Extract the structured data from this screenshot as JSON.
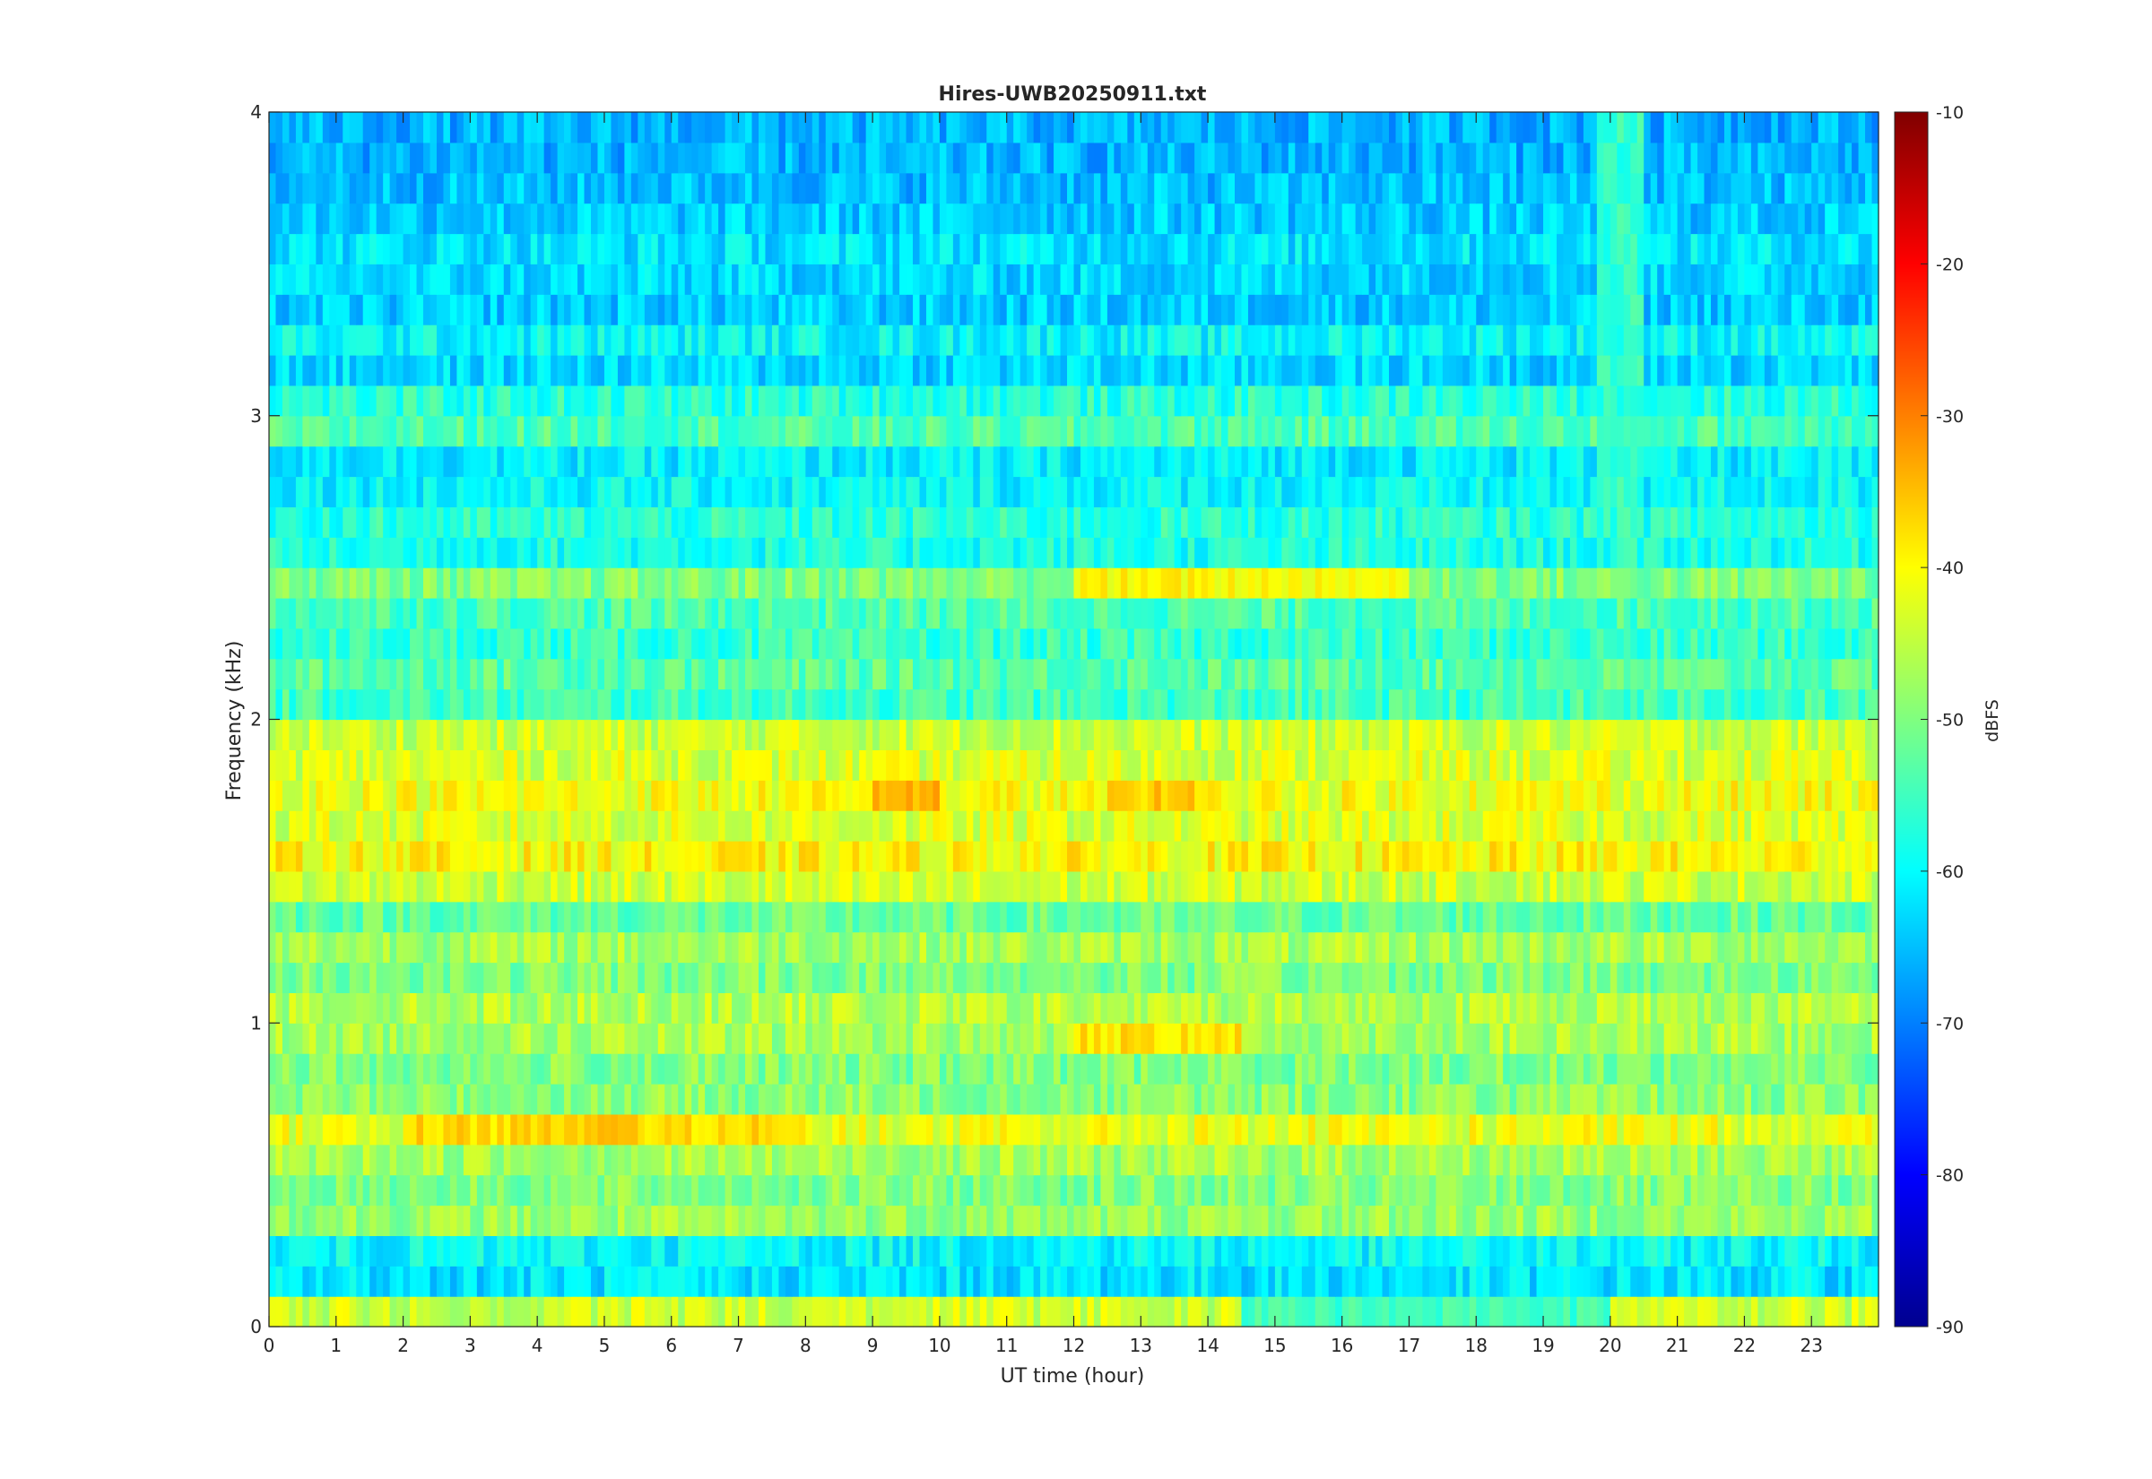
{
  "chart_data": {
    "type": "heatmap",
    "title": "Hires-UWB20250911.txt",
    "xlabel": "UT time (hour)",
    "ylabel": "Frequency (kHz)",
    "xlim": [
      0,
      24
    ],
    "ylim": [
      0,
      4
    ],
    "x_ticks": [
      "0",
      "1",
      "2",
      "3",
      "4",
      "5",
      "6",
      "7",
      "8",
      "9",
      "10",
      "11",
      "12",
      "13",
      "14",
      "15",
      "16",
      "17",
      "18",
      "19",
      "20",
      "21",
      "22",
      "23"
    ],
    "y_ticks": [
      "0",
      "1",
      "2",
      "3",
      "4"
    ],
    "colormap": "jet",
    "grid": false,
    "colorbar": {
      "label": "dBFS",
      "range": [
        -90,
        -10
      ],
      "ticks": [
        "-10",
        "-20",
        "-30",
        "-40",
        "-50",
        "-60",
        "-70",
        "-80",
        "-90"
      ],
      "colors": [
        "#00008f",
        "#0000ff",
        "#00ffff",
        "#ffff00",
        "#ff0000",
        "#800000"
      ]
    },
    "level_range_dBFS": [
      -72,
      -28
    ],
    "bands_kHz_dBFS": [
      [
        0.05,
        -44
      ],
      [
        0.15,
        -62
      ],
      [
        0.25,
        -60
      ],
      [
        0.35,
        -48
      ],
      [
        0.45,
        -50
      ],
      [
        0.55,
        -47
      ],
      [
        0.65,
        -42
      ],
      [
        0.75,
        -49
      ],
      [
        0.85,
        -50
      ],
      [
        0.95,
        -47
      ],
      [
        1.05,
        -46
      ],
      [
        1.15,
        -50
      ],
      [
        1.25,
        -47
      ],
      [
        1.35,
        -52
      ],
      [
        1.45,
        -44
      ],
      [
        1.55,
        -40
      ],
      [
        1.65,
        -43
      ],
      [
        1.75,
        -41
      ],
      [
        1.85,
        -43
      ],
      [
        1.95,
        -44
      ],
      [
        2.05,
        -55
      ],
      [
        2.15,
        -53
      ],
      [
        2.25,
        -56
      ],
      [
        2.35,
        -54
      ],
      [
        2.45,
        -50
      ],
      [
        2.55,
        -58
      ],
      [
        2.65,
        -57
      ],
      [
        2.75,
        -60
      ],
      [
        2.85,
        -61
      ],
      [
        2.95,
        -54
      ],
      [
        3.05,
        -57
      ],
      [
        3.15,
        -63
      ],
      [
        3.25,
        -60
      ],
      [
        3.35,
        -64
      ],
      [
        3.45,
        -63
      ],
      [
        3.55,
        -62
      ],
      [
        3.65,
        -64
      ],
      [
        3.75,
        -65
      ],
      [
        3.85,
        -66
      ],
      [
        3.95,
        -66
      ]
    ],
    "features": [
      {
        "hours": [
          9,
          10
        ],
        "kHz": [
          1.7,
          1.8
        ],
        "dBFS": -34
      },
      {
        "hours": [
          12.5,
          14
        ],
        "kHz": [
          1.7,
          1.8
        ],
        "dBFS": -36
      },
      {
        "hours": [
          2,
          8
        ],
        "kHz": [
          0.6,
          0.7
        ],
        "dBFS": -37
      },
      {
        "hours": [
          12,
          14.5
        ],
        "kHz": [
          0.9,
          1.0
        ],
        "dBFS": -38
      },
      {
        "hours": [
          12,
          17
        ],
        "kHz": [
          2.4,
          2.5
        ],
        "dBFS": -40
      },
      {
        "hours": [
          14.5,
          20
        ],
        "kHz": [
          0.0,
          0.1
        ],
        "dBFS": -55
      },
      {
        "hours": [
          19.8,
          20.5
        ],
        "kHz": [
          2.6,
          4.0
        ],
        "dBFS": -56
      }
    ]
  }
}
